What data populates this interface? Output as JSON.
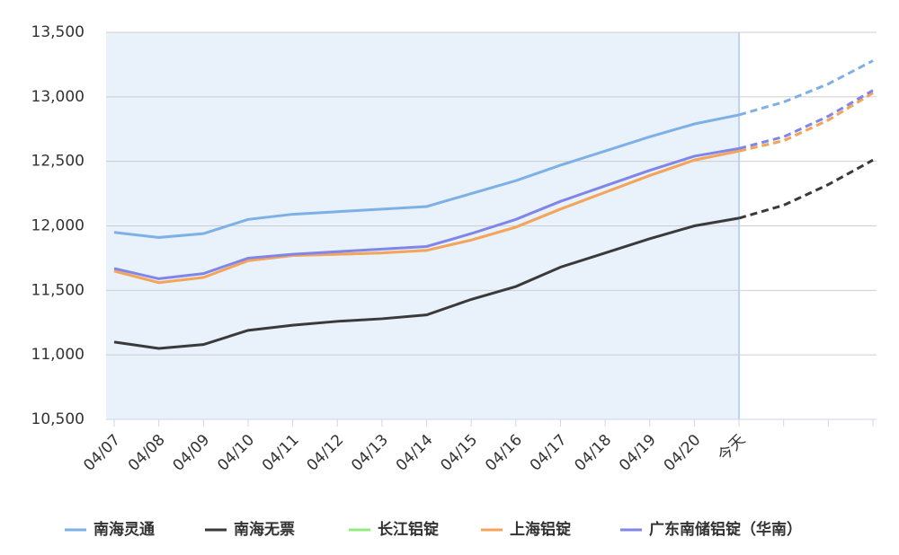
{
  "chart_data": {
    "type": "line",
    "categories": [
      "04/07",
      "04/08",
      "04/09",
      "04/10",
      "04/11",
      "04/12",
      "04/13",
      "04/14",
      "04/15",
      "04/16",
      "04/17",
      "04/18",
      "04/19",
      "04/20",
      "今天",
      null,
      null,
      null
    ],
    "forecast_from_category": 14,
    "series": [
      {
        "name": "南海灵通",
        "color": "#7cb0e6",
        "values": [
          11950,
          11910,
          11940,
          12050,
          12090,
          12110,
          12130,
          12150,
          12250,
          12350,
          12470,
          12580,
          12690,
          12790,
          12860,
          12960,
          13100,
          13280
        ]
      },
      {
        "name": "南海无票",
        "color": "#3a3a3a",
        "values": [
          11100,
          11050,
          11080,
          11190,
          11230,
          11260,
          11280,
          11310,
          11430,
          11530,
          11680,
          11790,
          11900,
          12000,
          12060,
          12160,
          12320,
          12510
        ]
      },
      {
        "name": "长江铝锭",
        "color": "#90ed7d",
        "values": [
          11650,
          11560,
          11600,
          11730,
          11770,
          11780,
          11790,
          11810,
          11890,
          11990,
          12130,
          12260,
          12390,
          12510,
          12580,
          12660,
          12820,
          13030
        ]
      },
      {
        "name": "上海铝锭",
        "color": "#f7a35c",
        "values": [
          11650,
          11560,
          11600,
          11730,
          11770,
          11780,
          11790,
          11810,
          11890,
          11990,
          12130,
          12260,
          12390,
          12510,
          12580,
          12660,
          12820,
          13030
        ]
      },
      {
        "name": "广东南储铝锭（华南）",
        "color": "#8085e9",
        "values": [
          11670,
          11590,
          11630,
          11750,
          11780,
          11800,
          11820,
          11840,
          11940,
          12050,
          12190,
          12310,
          12430,
          12540,
          12600,
          12690,
          12850,
          13050
        ]
      }
    ],
    "ylim": [
      10500,
      13500
    ],
    "yticks": [
      {
        "value": 10500,
        "label": "10,500"
      },
      {
        "value": 11000,
        "label": "11,000"
      },
      {
        "value": 11500,
        "label": "11,500"
      },
      {
        "value": 12000,
        "label": "12,000"
      },
      {
        "value": 12500,
        "label": "12,500"
      },
      {
        "value": 13000,
        "label": "13,000"
      },
      {
        "value": 13500,
        "label": "13,500"
      }
    ],
    "grid": true,
    "legend": "bottom"
  }
}
